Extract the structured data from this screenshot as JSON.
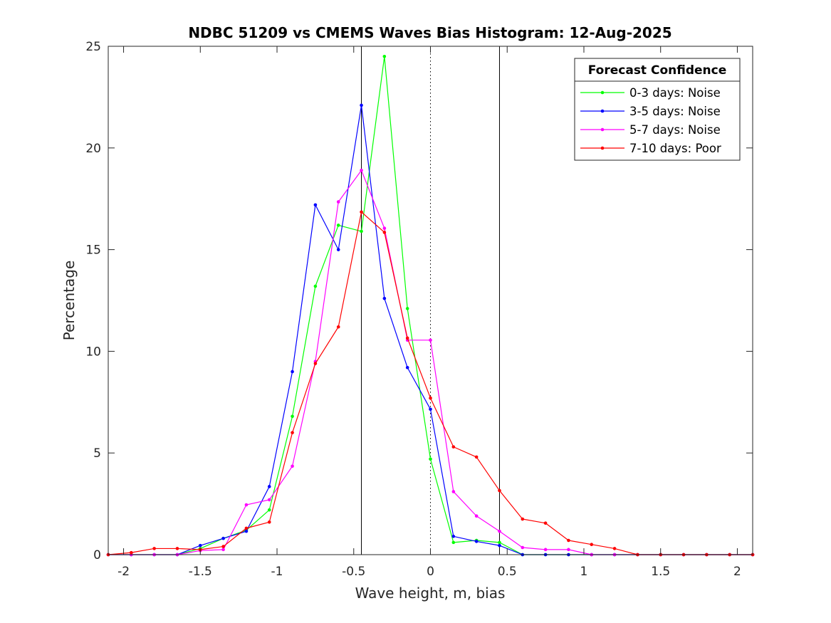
{
  "chart_data": {
    "type": "line",
    "title": "NDBC 51209 vs CMEMS Waves Bias Histogram: 12-Aug-2025",
    "xlabel": "Wave height, m, bias",
    "ylabel": "Percentage",
    "xlim": [
      -2.1,
      2.1
    ],
    "ylim": [
      0,
      25
    ],
    "xticks": [
      -2,
      -1.5,
      -1,
      -0.5,
      0,
      0.5,
      1,
      1.5,
      2
    ],
    "xtick_labels": [
      "-2",
      "-1.5",
      "-1",
      "-0.5",
      "0",
      "0.5",
      "1",
      "1.5",
      "2"
    ],
    "yticks": [
      0,
      5,
      10,
      15,
      20,
      25
    ],
    "ytick_labels": [
      "0",
      "5",
      "10",
      "15",
      "20",
      "25"
    ],
    "vertical_lines": [
      {
        "x": -0.45,
        "style": "solid",
        "color": "#000000"
      },
      {
        "x": 0,
        "style": "dotted",
        "color": "#000000"
      },
      {
        "x": 0.45,
        "style": "solid",
        "color": "#000000"
      }
    ],
    "x": [
      -2.1,
      -1.95,
      -1.8,
      -1.65,
      -1.5,
      -1.35,
      -1.2,
      -1.05,
      -0.9,
      -0.75,
      -0.6,
      -0.45,
      -0.3,
      -0.15,
      0,
      0.15,
      0.3,
      0.45,
      0.6,
      0.75,
      0.9,
      1.05,
      1.2,
      1.35,
      1.5,
      1.65,
      1.8,
      1.95,
      2.1
    ],
    "legend": {
      "title": "Forecast Confidence",
      "position": "top-right"
    },
    "series": [
      {
        "name": "0-3 days: Noise",
        "color": "#00ff00",
        "values": [
          0,
          0,
          0,
          0,
          0.3,
          0.8,
          1.2,
          2.2,
          6.8,
          13.2,
          16.2,
          15.9,
          24.5,
          12.1,
          4.7,
          0.6,
          0.7,
          0.6,
          0,
          0,
          0,
          0,
          0,
          0,
          0,
          0,
          0,
          0,
          0
        ]
      },
      {
        "name": "3-5 days: Noise",
        "color": "#0000ff",
        "values": [
          0,
          0,
          0,
          0,
          0.45,
          0.8,
          1.15,
          3.35,
          9.0,
          17.2,
          15.0,
          22.1,
          12.6,
          9.2,
          7.15,
          0.9,
          0.65,
          0.45,
          0,
          0,
          0,
          0,
          0,
          0,
          0,
          0,
          0,
          0,
          0
        ]
      },
      {
        "name": "5-7 days: Noise",
        "color": "#ff00ff",
        "values": [
          0,
          0,
          0,
          0,
          0.2,
          0.25,
          2.45,
          2.7,
          4.35,
          9.5,
          17.35,
          18.9,
          16.05,
          10.55,
          10.55,
          3.1,
          1.9,
          1.15,
          0.35,
          0.25,
          0.25,
          0,
          0,
          0,
          0,
          0,
          0,
          0,
          0
        ]
      },
      {
        "name": "7-10 days: Poor",
        "color": "#ff0000",
        "values": [
          0,
          0.1,
          0.3,
          0.3,
          0.25,
          0.4,
          1.3,
          1.6,
          6.0,
          9.4,
          11.2,
          16.85,
          15.85,
          10.65,
          7.7,
          5.3,
          4.8,
          3.15,
          1.75,
          1.55,
          0.7,
          0.5,
          0.3,
          0,
          0,
          0,
          0,
          0,
          0
        ]
      }
    ]
  }
}
